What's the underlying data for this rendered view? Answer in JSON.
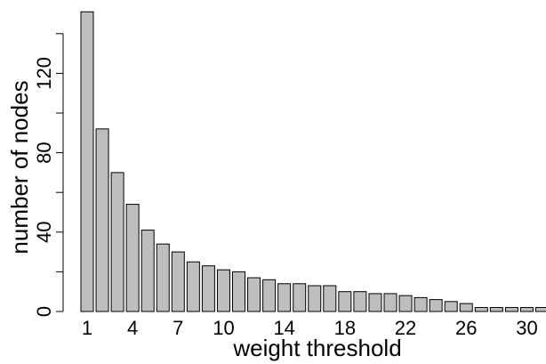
{
  "chart_data": {
    "type": "bar",
    "title": "",
    "xlabel": "weight threshold",
    "ylabel": "number of nodes",
    "categories": [
      "1",
      "2",
      "3",
      "4",
      "5",
      "6",
      "7",
      "8",
      "9",
      "10",
      "11",
      "12",
      "13",
      "14",
      "15",
      "16",
      "17",
      "18",
      "19",
      "20",
      "21",
      "22",
      "23",
      "24",
      "25",
      "26",
      "27",
      "28",
      "29",
      "30",
      "31",
      "32"
    ],
    "values": [
      151,
      92,
      70,
      54,
      41,
      34,
      30,
      25,
      23,
      21,
      20,
      17,
      16,
      14,
      14,
      13,
      13,
      10,
      10,
      9,
      9,
      8,
      7,
      6,
      5,
      4,
      2,
      2,
      2,
      2,
      2,
      2
    ],
    "x_tick_labels": [
      "1",
      "4",
      "7",
      "10",
      "14",
      "18",
      "22",
      "26",
      "30"
    ],
    "y_ticks": [
      0,
      40,
      80,
      120
    ],
    "y_tick_labels": [
      "0",
      "40",
      "80",
      "120"
    ],
    "ylim": [
      0,
      151
    ],
    "grid": false,
    "legend": "none",
    "colors": {
      "bar_fill": "#bebebe",
      "bar_stroke": "#000000"
    }
  }
}
